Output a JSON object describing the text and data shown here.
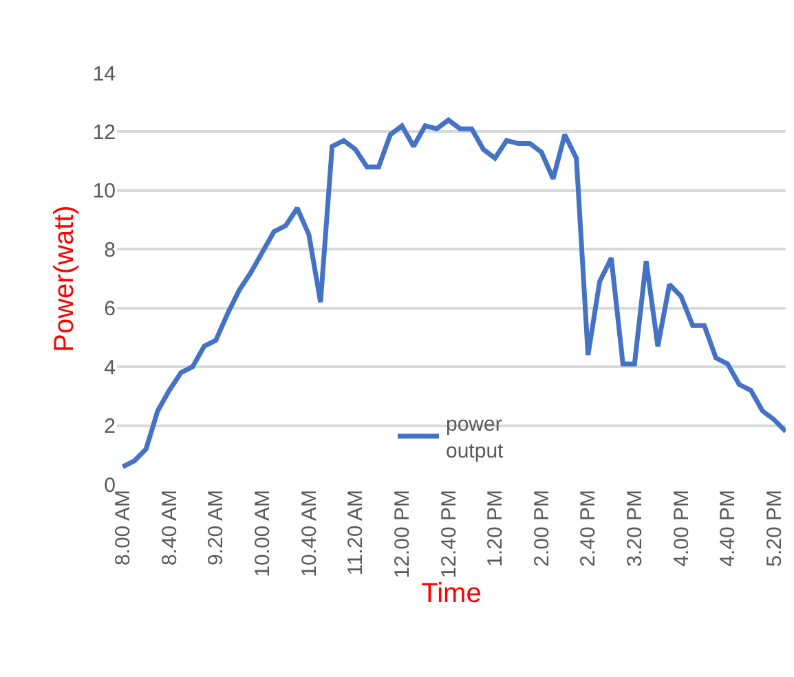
{
  "chart_data": {
    "type": "line",
    "xlabel": "Time",
    "ylabel": "Power(watt)",
    "categories": [
      "8.00 AM",
      null,
      null,
      null,
      "8.40 AM",
      null,
      null,
      null,
      "9.20 AM",
      null,
      null,
      null,
      "10.00 AM",
      null,
      null,
      null,
      "10.40 AM",
      null,
      null,
      null,
      "11.20 AM",
      null,
      null,
      null,
      "12.00 PM",
      null,
      null,
      null,
      "12.40 PM",
      null,
      null,
      null,
      "1.20 PM",
      null,
      null,
      null,
      "2.00 PM",
      null,
      null,
      null,
      "2.40 PM",
      null,
      null,
      null,
      "3.20 PM",
      null,
      null,
      null,
      "4.00 PM",
      null,
      null,
      null,
      "4.40 PM",
      null,
      null,
      null,
      "5.20 PM",
      null
    ],
    "series": [
      {
        "name": "power output",
        "color": "#4472c4",
        "values": [
          0.6,
          0.8,
          1.2,
          2.5,
          3.2,
          3.8,
          4.0,
          4.7,
          4.9,
          5.8,
          6.6,
          7.2,
          7.9,
          8.6,
          8.8,
          9.4,
          8.5,
          6.2,
          11.5,
          11.7,
          11.4,
          10.8,
          10.8,
          11.9,
          12.2,
          11.5,
          12.2,
          12.1,
          12.4,
          12.1,
          12.1,
          11.4,
          11.1,
          11.7,
          11.6,
          11.6,
          11.3,
          10.4,
          11.9,
          11.1,
          4.4,
          6.9,
          7.7,
          4.1,
          4.1,
          7.6,
          4.7,
          6.8,
          6.4,
          5.4,
          5.4,
          4.3,
          4.1,
          3.4,
          3.2,
          2.5,
          2.2,
          1.8
        ]
      }
    ],
    "ylim": [
      0,
      14
    ],
    "yticks": [
      0,
      2,
      4,
      6,
      8,
      10,
      12,
      14
    ],
    "grid": "y",
    "legend": "bottom"
  }
}
